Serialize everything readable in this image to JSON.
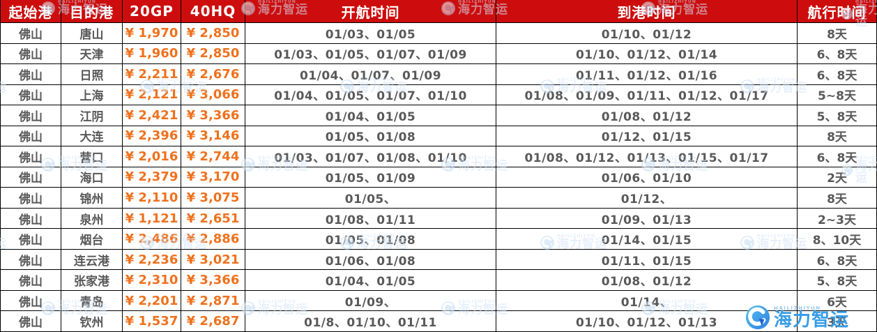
{
  "chart_data": {
    "type": "table",
    "columns": [
      "起始港",
      "目的港",
      "20GP",
      "40HQ",
      "开航时间",
      "到港时间",
      "航行时间"
    ],
    "rows": [
      [
        "佛山",
        "唐山",
        "¥ 1,970",
        "¥ 2,850",
        "01/03、01/05",
        "01/10、01/12",
        "8天"
      ],
      [
        "佛山",
        "天津",
        "¥ 1,960",
        "¥ 2,850",
        "01/03、01/05、01/07、01/09",
        "01/10、01/12、01/14",
        "6、8天"
      ],
      [
        "佛山",
        "日照",
        "¥ 2,211",
        "¥ 2,676",
        "01/04、01/07、01/09",
        "01/11、01/12、01/16",
        "6、8天"
      ],
      [
        "佛山",
        "上海",
        "¥ 2,121",
        "¥ 3,066",
        "01/04、01/05、01/07、01/10",
        "01/08、01/09、01/11、01/12、01/17",
        "5~8天"
      ],
      [
        "佛山",
        "江阴",
        "¥ 2,421",
        "¥ 3,366",
        "01/04、01/05",
        "01/08、01/12",
        "5、8天"
      ],
      [
        "佛山",
        "大连",
        "¥ 2,396",
        "¥ 3,146",
        "01/05、01/08",
        "01/12、01/15",
        "8天"
      ],
      [
        "佛山",
        "营口",
        "¥ 2,016",
        "¥ 2,744",
        "01/03、01/07、01/08、01/10",
        "01/08、01/12、01/13、01/15、01/17",
        "6、8天"
      ],
      [
        "佛山",
        "海口",
        "¥ 2,379",
        "¥ 3,170",
        "01/05、01/09",
        "01/06、01/10",
        "2天"
      ],
      [
        "佛山",
        "锦州",
        "¥ 2,110",
        "¥ 3,075",
        "01/05、",
        "01/12、",
        "8天"
      ],
      [
        "佛山",
        "泉州",
        "¥ 1,121",
        "¥ 2,651",
        "01/08、01/11",
        "01/09、01/13",
        "2~3天"
      ],
      [
        "佛山",
        "烟台",
        "¥ 2,486",
        "¥ 2,886",
        "01/05、01/08",
        "01/14、01/15",
        "8、10天"
      ],
      [
        "佛山",
        "连云港",
        "¥ 2,236",
        "¥ 3,021",
        "01/06、01/08",
        "01/11、01/15",
        "6、8天"
      ],
      [
        "佛山",
        "张家港",
        "¥ 2,310",
        "¥ 3,366",
        "01/04、01/05",
        "01/08、01/12",
        "5、8天"
      ],
      [
        "佛山",
        "青岛",
        "¥ 2,201",
        "¥ 2,871",
        "01/09、",
        "01/14、",
        "6天"
      ],
      [
        "佛山",
        "钦州",
        "¥ 1,537",
        "¥ 2,687",
        "01/8、01/10、01/11",
        "01/10、01/12、01/13",
        "3天"
      ]
    ]
  },
  "watermark": {
    "text": "海力智运",
    "subtext": "HAILIZHIYUN"
  },
  "colors": {
    "header_bg": "#cd0d0d",
    "header_text": "#ffffff",
    "price_text": "#ef711d",
    "body_text": "#595959",
    "logo_blue": "#389de8",
    "watermark_blue": "#d2e3f7"
  }
}
